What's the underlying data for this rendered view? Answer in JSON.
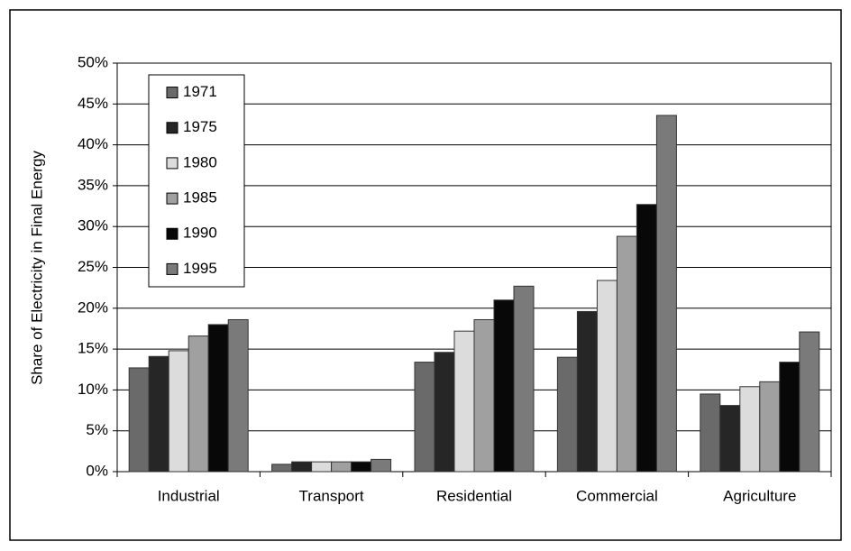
{
  "chart_data": {
    "type": "bar",
    "y_label": "Share of Electricity in Final Energy",
    "categories": [
      "Industrial",
      "Transport",
      "Residential",
      "Commercial",
      "Agriculture"
    ],
    "series": [
      {
        "name": "1971",
        "color": "#6a6a6a",
        "values": [
          12.7,
          0.9,
          13.4,
          14.0,
          9.5
        ]
      },
      {
        "name": "1975",
        "color": "#262626",
        "values": [
          14.1,
          1.2,
          14.6,
          19.6,
          8.1
        ]
      },
      {
        "name": "1980",
        "color": "#dcdcdc",
        "values": [
          14.8,
          1.2,
          17.2,
          23.4,
          10.4
        ]
      },
      {
        "name": "1985",
        "color": "#a0a0a0",
        "values": [
          16.6,
          1.2,
          18.6,
          28.8,
          11.0
        ]
      },
      {
        "name": "1990",
        "color": "#080808",
        "values": [
          18.0,
          1.2,
          21.0,
          32.7,
          13.4
        ]
      },
      {
        "name": "1995",
        "color": "#7a7a7a",
        "values": [
          18.6,
          1.5,
          22.7,
          43.6,
          17.1
        ]
      }
    ],
    "ylim": [
      0,
      50
    ],
    "yticks": [
      {
        "value": 0,
        "label": "0%"
      },
      {
        "value": 5,
        "label": "5%"
      },
      {
        "value": 10,
        "label": "10%"
      },
      {
        "value": 15,
        "label": "15%"
      },
      {
        "value": 20,
        "label": "20%"
      },
      {
        "value": 25,
        "label": "25%"
      },
      {
        "value": 30,
        "label": "30%"
      },
      {
        "value": 35,
        "label": "35%"
      },
      {
        "value": 40,
        "label": "40%"
      },
      {
        "value": 45,
        "label": "45%"
      },
      {
        "value": 50,
        "label": "50%"
      }
    ],
    "grid": true,
    "legend": "top-left"
  }
}
